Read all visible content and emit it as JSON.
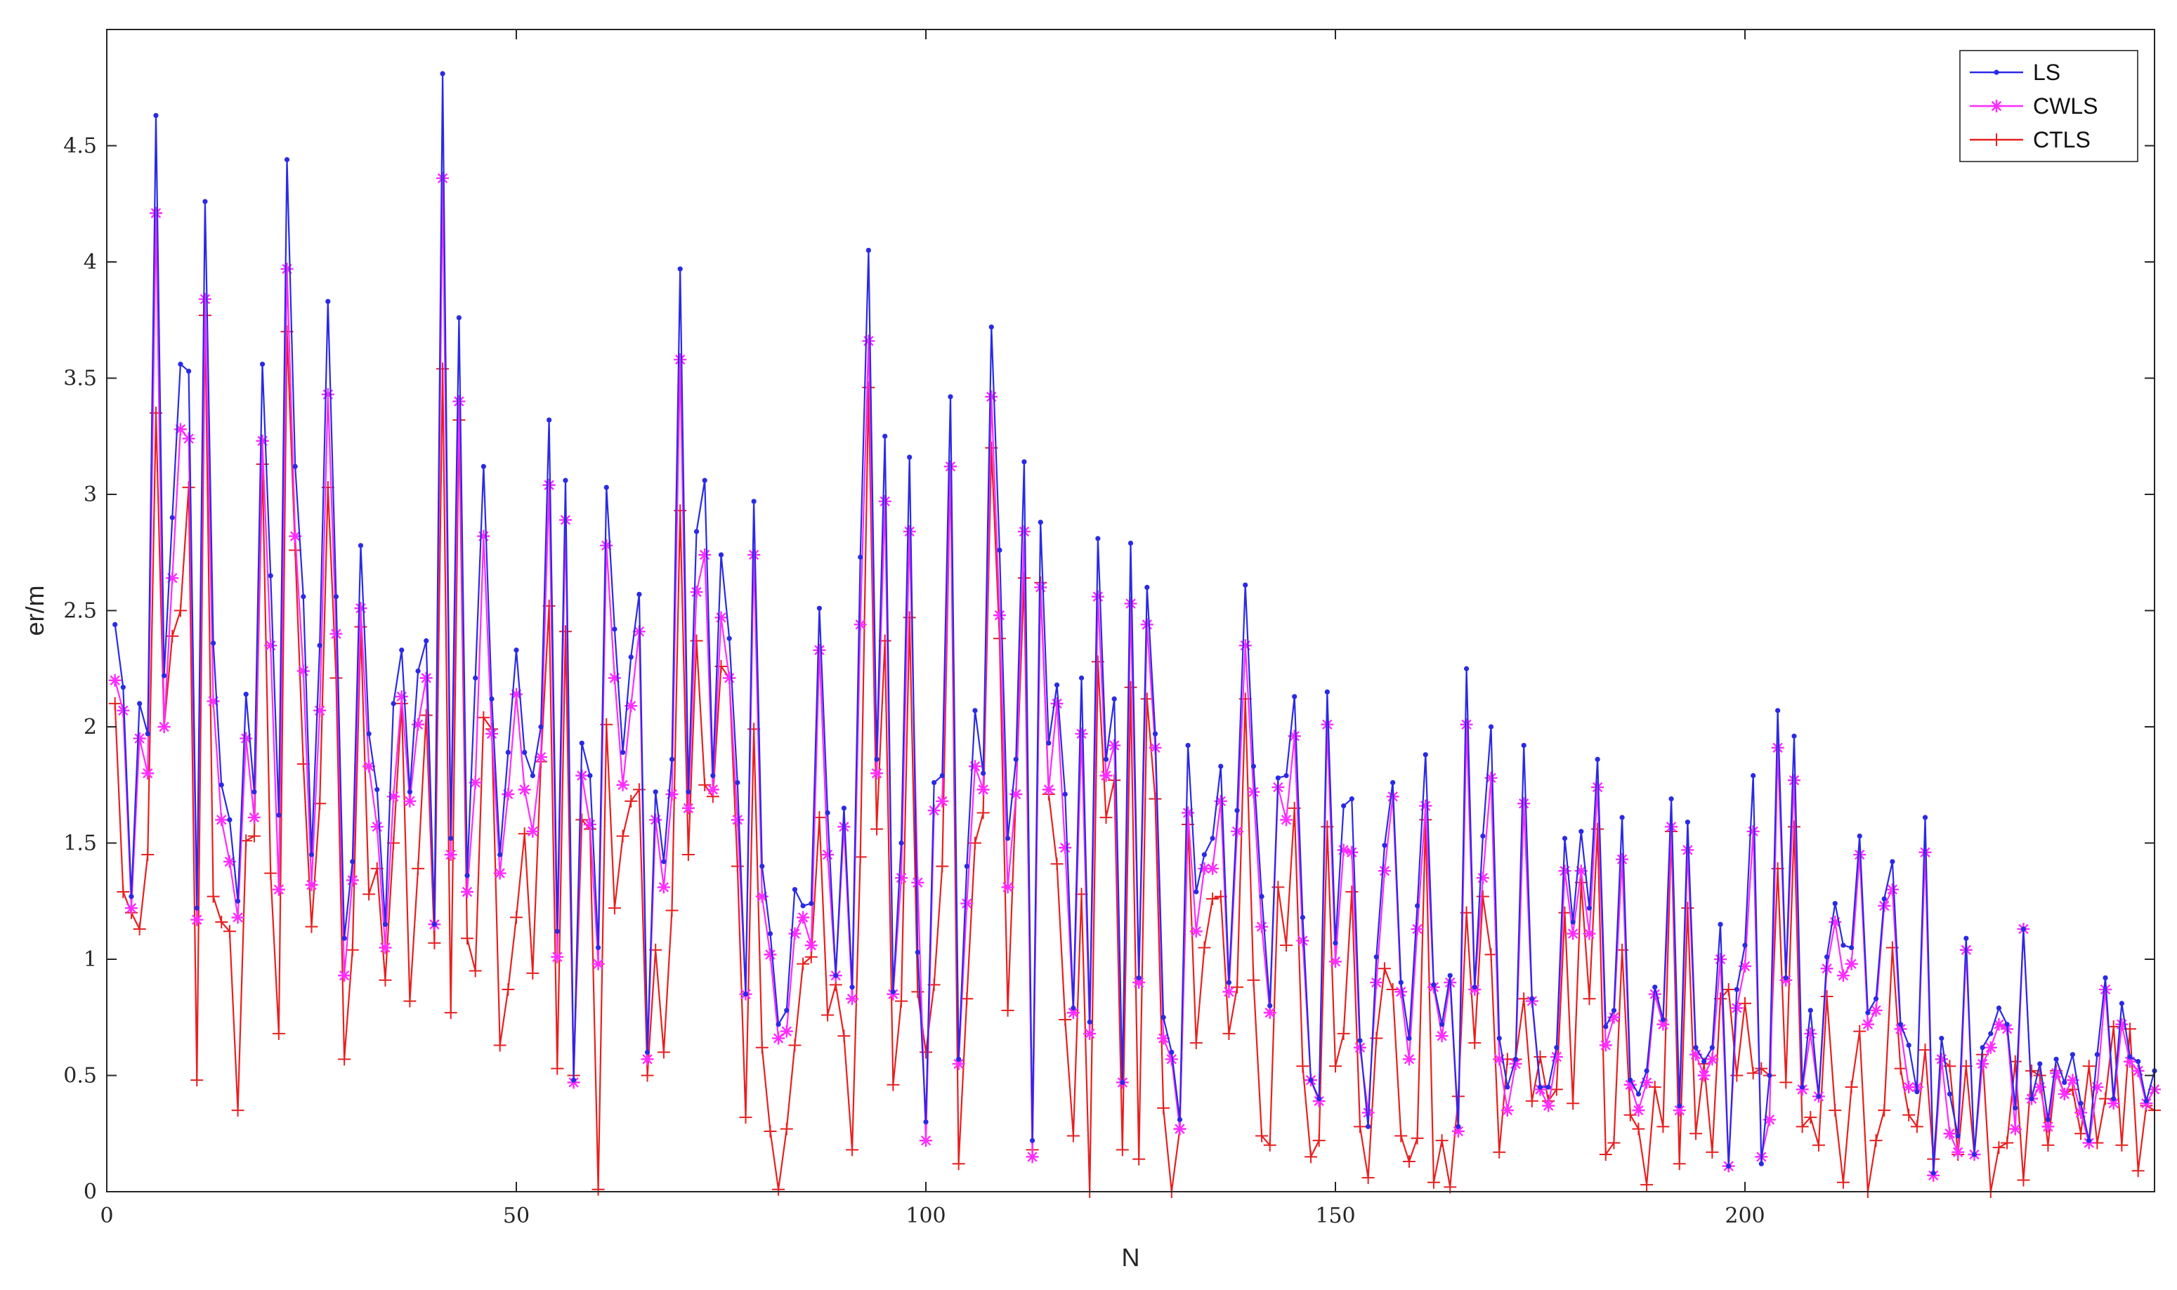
{
  "chart_data": {
    "type": "line",
    "xlabel": "N",
    "ylabel": "er/m",
    "xlim": [
      0,
      250
    ],
    "ylim": [
      0,
      5.0
    ],
    "xticks": [
      0,
      50,
      100,
      150,
      200
    ],
    "yticks": [
      0,
      0.5,
      1,
      1.5,
      2,
      2.5,
      3,
      3.5,
      4,
      4.5
    ],
    "grid": false,
    "legend_position": "top-right",
    "x_start": 1,
    "series": [
      {
        "name": "LS",
        "color": "#2a2ae6",
        "marker": "dot",
        "values": [
          2.44,
          2.17,
          1.27,
          2.1,
          1.97,
          4.63,
          2.22,
          2.9,
          3.56,
          3.53,
          1.22,
          4.26,
          2.36,
          1.75,
          1.6,
          1.25,
          2.14,
          1.72,
          3.56,
          2.65,
          1.62,
          4.44,
          3.12,
          2.56,
          1.45,
          2.35,
          3.83,
          2.56,
          1.09,
          1.42,
          2.78,
          1.97,
          1.73,
          1.15,
          2.1,
          2.33,
          1.72,
          2.24,
          2.37,
          1.15,
          4.81,
          1.52,
          3.76,
          1.36,
          2.21,
          3.12,
          2.12,
          1.45,
          1.89,
          2.33,
          1.89,
          1.79,
          2.0,
          3.32,
          1.12,
          3.06,
          0.48,
          1.93,
          1.79,
          1.05,
          3.03,
          2.42,
          1.89,
          2.3,
          2.57,
          0.6,
          1.72,
          1.42,
          1.86,
          3.97,
          1.72,
          2.84,
          3.06,
          1.79,
          2.74,
          2.38,
          1.76,
          0.85,
          2.97,
          1.4,
          1.11,
          0.72,
          0.78,
          1.3,
          1.23,
          1.24,
          2.51,
          1.63,
          0.93,
          1.65,
          0.88,
          2.73,
          4.05,
          1.86,
          3.25,
          0.86,
          1.5,
          3.16,
          1.03,
          0.3,
          1.76,
          1.79,
          3.42,
          0.57,
          1.4,
          2.07,
          1.8,
          3.72,
          2.76,
          1.52,
          1.86,
          3.14,
          0.22,
          2.88,
          1.93,
          2.18,
          1.71,
          0.79,
          2.21,
          0.73,
          2.81,
          1.86,
          2.12,
          0.47,
          2.79,
          0.92,
          2.6,
          1.97,
          0.75,
          0.6,
          0.31,
          1.92,
          1.29,
          1.45,
          1.52,
          1.83,
          0.9,
          1.64,
          2.61,
          1.83,
          1.27,
          0.8,
          1.78,
          1.79,
          2.13,
          1.18,
          0.48,
          0.4,
          2.15,
          1.07,
          1.66,
          1.69,
          0.65,
          0.28,
          1.01,
          1.49,
          1.76,
          0.9,
          0.66,
          1.23,
          1.88,
          0.89,
          0.72,
          0.93,
          0.28,
          2.25,
          0.88,
          1.53,
          2.0,
          0.66,
          0.45,
          0.57,
          1.92,
          0.83,
          0.45,
          0.45,
          0.62,
          1.52,
          1.16,
          1.55,
          1.22,
          1.86,
          0.71,
          0.78,
          1.61,
          0.48,
          0.42,
          0.52,
          0.88,
          0.74,
          1.69,
          0.37,
          1.59,
          0.62,
          0.56,
          0.62,
          1.15,
          0.11,
          0.87,
          1.06,
          1.79,
          0.12,
          0.5,
          2.07,
          0.92,
          1.96,
          0.45,
          0.78,
          0.41,
          1.01,
          1.24,
          1.06,
          1.05,
          1.53,
          0.77,
          0.83,
          1.26,
          1.42,
          0.72,
          0.63,
          0.43,
          1.61,
          0.08,
          0.66,
          0.42,
          0.24,
          1.09,
          0.16,
          0.62,
          0.68,
          0.79,
          0.72,
          0.36,
          1.13,
          0.4,
          0.55,
          0.31,
          0.57,
          0.47,
          0.59,
          0.38,
          0.22,
          0.59,
          0.92,
          0.4,
          0.81,
          0.58,
          0.56,
          0.39,
          0.52
        ]
      },
      {
        "name": "CWLS",
        "color": "#ff2bff",
        "marker": "asterisk",
        "values": [
          2.2,
          2.07,
          1.22,
          1.95,
          1.8,
          4.21,
          2.0,
          2.64,
          3.28,
          3.24,
          1.17,
          3.84,
          2.11,
          1.6,
          1.42,
          1.18,
          1.95,
          1.61,
          3.23,
          2.35,
          1.3,
          3.97,
          2.82,
          2.24,
          1.32,
          2.07,
          3.43,
          2.4,
          0.93,
          1.34,
          2.51,
          1.83,
          1.57,
          1.05,
          1.7,
          2.13,
          1.68,
          2.01,
          2.21,
          1.15,
          4.36,
          1.45,
          3.4,
          1.29,
          1.76,
          2.82,
          1.97,
          1.37,
          1.71,
          2.14,
          1.73,
          1.55,
          1.87,
          3.04,
          1.01,
          2.89,
          0.47,
          1.79,
          1.58,
          0.98,
          2.78,
          2.21,
          1.75,
          2.09,
          2.41,
          0.57,
          1.6,
          1.31,
          1.71,
          3.58,
          1.65,
          2.58,
          2.74,
          1.73,
          2.47,
          2.21,
          1.6,
          0.85,
          2.74,
          1.27,
          1.02,
          0.66,
          0.69,
          1.11,
          1.18,
          1.06,
          2.33,
          1.45,
          0.93,
          1.57,
          0.83,
          2.44,
          3.66,
          1.8,
          2.97,
          0.85,
          1.35,
          2.84,
          1.33,
          0.22,
          1.64,
          1.68,
          3.12,
          0.55,
          1.24,
          1.83,
          1.73,
          3.42,
          2.48,
          1.31,
          1.71,
          2.84,
          0.15,
          2.6,
          1.73,
          2.1,
          1.48,
          0.77,
          1.97,
          0.68,
          2.56,
          1.79,
          1.92,
          0.47,
          2.53,
          0.9,
          2.44,
          1.91,
          0.66,
          0.57,
          0.27,
          1.63,
          1.12,
          1.39,
          1.39,
          1.68,
          0.86,
          1.55,
          2.35,
          1.72,
          1.14,
          0.77,
          1.74,
          1.6,
          1.96,
          1.08,
          0.48,
          0.39,
          2.01,
          0.99,
          1.47,
          1.46,
          0.62,
          0.34,
          0.9,
          1.38,
          1.7,
          0.86,
          0.57,
          1.13,
          1.66,
          0.88,
          0.67,
          0.9,
          0.26,
          2.01,
          0.87,
          1.35,
          1.78,
          0.57,
          0.35,
          0.55,
          1.67,
          0.82,
          0.44,
          0.37,
          0.58,
          1.38,
          1.11,
          1.38,
          1.11,
          1.74,
          0.63,
          0.75,
          1.43,
          0.46,
          0.35,
          0.47,
          0.85,
          0.72,
          1.57,
          0.35,
          1.47,
          0.59,
          0.5,
          0.57,
          1.0,
          0.11,
          0.79,
          0.97,
          1.55,
          0.15,
          0.31,
          1.91,
          0.91,
          1.77,
          0.44,
          0.68,
          0.41,
          0.96,
          1.16,
          0.93,
          0.98,
          1.45,
          0.72,
          0.78,
          1.23,
          1.3,
          0.7,
          0.45,
          0.45,
          1.46,
          0.07,
          0.57,
          0.25,
          0.17,
          1.04,
          0.16,
          0.55,
          0.62,
          0.72,
          0.7,
          0.27,
          1.13,
          0.4,
          0.45,
          0.28,
          0.51,
          0.42,
          0.48,
          0.34,
          0.21,
          0.45,
          0.87,
          0.38,
          0.72,
          0.56,
          0.52,
          0.38,
          0.44
        ]
      },
      {
        "name": "CTLS",
        "color": "#e81f1f",
        "marker": "plus",
        "values": [
          2.1,
          1.29,
          1.2,
          1.13,
          1.45,
          3.35,
          2.0,
          2.39,
          2.5,
          3.03,
          0.48,
          3.77,
          1.27,
          1.16,
          1.12,
          0.35,
          1.51,
          1.53,
          3.13,
          1.37,
          0.68,
          3.7,
          2.76,
          1.84,
          1.14,
          1.67,
          3.03,
          2.21,
          0.57,
          1.04,
          2.43,
          1.28,
          1.39,
          0.91,
          1.5,
          2.1,
          0.82,
          1.39,
          2.05,
          1.07,
          3.54,
          0.77,
          3.32,
          1.09,
          0.95,
          2.04,
          1.99,
          0.63,
          0.87,
          1.18,
          1.54,
          0.94,
          1.85,
          2.52,
          0.53,
          2.41,
          0.5,
          1.6,
          1.56,
          0.01,
          2.01,
          1.22,
          1.53,
          1.68,
          1.73,
          0.5,
          1.04,
          0.6,
          1.21,
          2.93,
          1.45,
          2.37,
          1.75,
          1.7,
          2.26,
          2.21,
          1.4,
          0.32,
          1.99,
          0.62,
          0.26,
          0.01,
          0.27,
          0.63,
          0.98,
          1.01,
          1.61,
          0.76,
          0.89,
          0.67,
          0.18,
          1.44,
          3.46,
          1.56,
          2.37,
          0.46,
          0.82,
          2.47,
          0.86,
          0.6,
          0.89,
          1.4,
          3.12,
          0.12,
          0.83,
          1.5,
          1.63,
          3.2,
          2.38,
          0.78,
          1.71,
          2.64,
          0.18,
          2.62,
          1.71,
          1.41,
          0.74,
          0.24,
          1.28,
          0.0,
          2.28,
          1.61,
          1.77,
          0.18,
          2.17,
          0.14,
          2.12,
          1.69,
          0.36,
          0.0,
          0.27,
          1.58,
          0.64,
          1.05,
          1.26,
          1.27,
          0.68,
          0.88,
          2.12,
          0.91,
          0.24,
          0.2,
          1.31,
          1.06,
          1.65,
          0.54,
          0.15,
          0.22,
          1.57,
          0.54,
          0.68,
          1.29,
          0.28,
          0.06,
          0.66,
          0.96,
          0.87,
          0.24,
          0.13,
          0.23,
          1.6,
          0.04,
          0.22,
          0.02,
          0.41,
          1.2,
          0.64,
          1.27,
          1.02,
          0.17,
          0.57,
          0.57,
          0.83,
          0.39,
          0.58,
          0.39,
          0.44,
          1.2,
          0.38,
          1.33,
          0.83,
          1.56,
          0.16,
          0.21,
          1.04,
          0.33,
          0.27,
          0.03,
          0.45,
          0.28,
          1.55,
          0.12,
          1.22,
          0.25,
          0.55,
          0.17,
          0.83,
          0.87,
          0.5,
          0.81,
          0.51,
          0.53,
          0.5,
          1.39,
          0.47,
          1.57,
          0.28,
          0.32,
          0.2,
          0.84,
          0.35,
          0.04,
          0.45,
          0.69,
          0.0,
          0.22,
          0.35,
          1.05,
          0.53,
          0.33,
          0.28,
          0.61,
          0.14,
          0.57,
          0.54,
          0.16,
          0.54,
          0.16,
          0.59,
          0.0,
          0.19,
          0.21,
          0.56,
          0.05,
          0.52,
          0.5,
          0.2,
          0.52,
          0.42,
          0.44,
          0.25,
          0.54,
          0.21,
          0.4,
          0.71,
          0.2,
          0.7,
          0.09,
          0.37,
          0.35
        ]
      }
    ]
  }
}
